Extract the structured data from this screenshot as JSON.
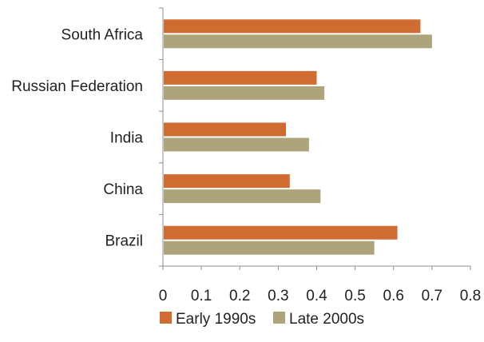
{
  "chart_data": {
    "type": "bar",
    "orientation": "horizontal",
    "categories": [
      "South Africa",
      "Russian Federation",
      "India",
      "China",
      "Brazil"
    ],
    "series": [
      {
        "name": "Early 1990s",
        "values": [
          0.67,
          0.4,
          0.32,
          0.33,
          0.61
        ],
        "color": "#d06b32"
      },
      {
        "name": "Late 2000s",
        "values": [
          0.7,
          0.42,
          0.38,
          0.41,
          0.55
        ],
        "color": "#ada47c"
      }
    ],
    "xlim": [
      0,
      0.8
    ],
    "xticks": [
      "0",
      "0.1",
      "0.2",
      "0.3",
      "0.4",
      "0.5",
      "0.6",
      "0.7",
      "0.8"
    ],
    "xtick_values": [
      0,
      0.1,
      0.2,
      0.3,
      0.4,
      0.5,
      0.6,
      0.7,
      0.8
    ],
    "title": "",
    "xlabel": "",
    "ylabel": "",
    "grid": false,
    "legend_position": "bottom-left",
    "axis_color": "#8c8c8c"
  }
}
